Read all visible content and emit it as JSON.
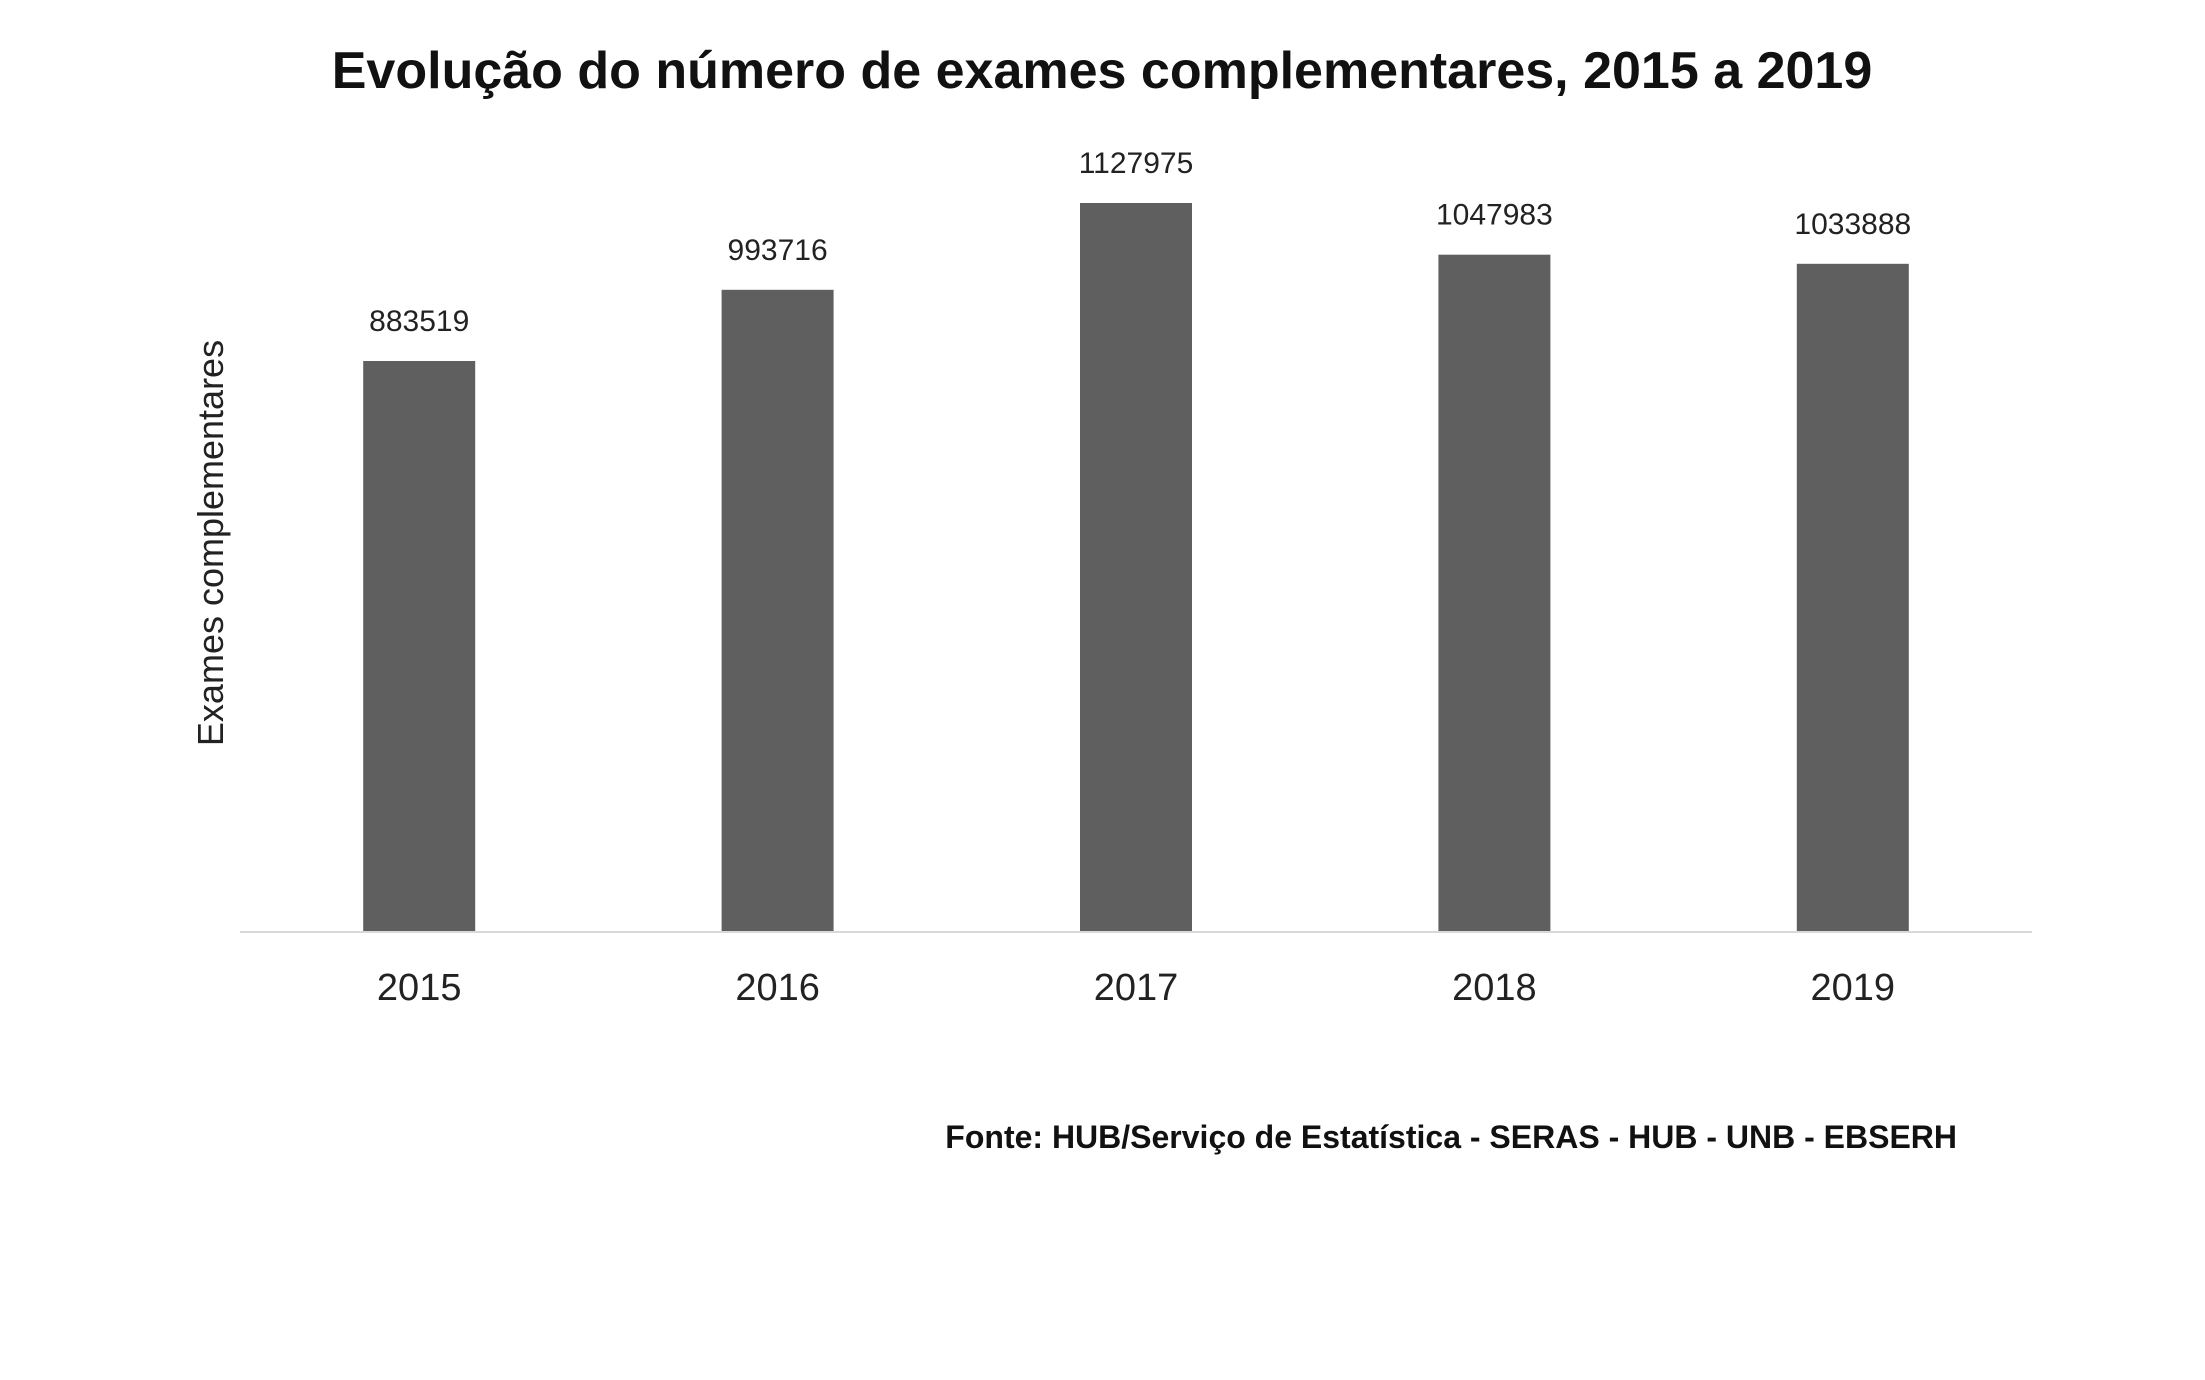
{
  "chart_data": {
    "type": "bar",
    "title": "Evolução do número de exames complementares, 2015 a 2019",
    "xlabel": "",
    "ylabel": "Exames complementares",
    "categories": [
      "2015",
      "2016",
      "2017",
      "2018",
      "2019"
    ],
    "values": [
      883519,
      993716,
      1127975,
      1047983,
      1033888
    ],
    "data_labels": [
      "883519",
      "993716",
      "1127975",
      "1047983",
      "1033888"
    ],
    "ylim": [
      0,
      1127975
    ],
    "grid": false,
    "legend": "none",
    "bar_color": "#5f5f5f",
    "axis_color": "#d9d9d9"
  },
  "source": "Fonte: HUB/Serviço de Estatística - SERAS - HUB - UNB - EBSERH"
}
